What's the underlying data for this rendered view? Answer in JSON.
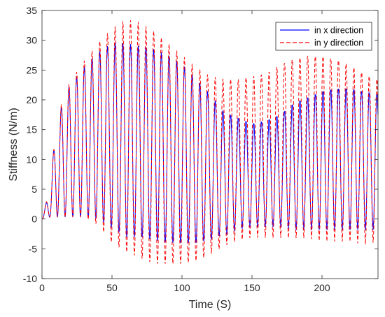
{
  "chart_data": {
    "type": "line",
    "title": "",
    "xlabel": "Time (S)",
    "ylabel": "Stiffness (N/m)",
    "xlim": [
      0,
      240
    ],
    "ylim": [
      -10,
      35
    ],
    "xticks": [
      0,
      50,
      100,
      150,
      200
    ],
    "yticks": [
      -10,
      -5,
      0,
      5,
      10,
      15,
      20,
      25,
      30,
      35
    ],
    "xtick_labels": [
      "0",
      "50",
      "100",
      "150",
      "200"
    ],
    "ytick_labels": [
      "-10",
      "-5",
      "0",
      "5",
      "10",
      "15",
      "20",
      "25",
      "30",
      "35"
    ],
    "grid": false,
    "legend_position": "top-right",
    "oscillation_period_s": 5.5,
    "series": [
      {
        "name": "in x direction",
        "color": "#0000ff",
        "style": "solid",
        "envelope": {
          "t": [
            0,
            5,
            10,
            15,
            20,
            30,
            40,
            50,
            60,
            70,
            80,
            90,
            100,
            110,
            120,
            130,
            140,
            150,
            160,
            170,
            180,
            190,
            200,
            210,
            220,
            230,
            240
          ],
          "upper": [
            0,
            4.5,
            15,
            20,
            22.5,
            25.5,
            28,
            29.5,
            29.5,
            29,
            28.5,
            27.5,
            26,
            23.5,
            21,
            18,
            17,
            16,
            16.5,
            17.5,
            19.5,
            20.5,
            21.5,
            22,
            22,
            21.5,
            21
          ],
          "lower": [
            0,
            0.3,
            0.3,
            0.3,
            0.3,
            0.3,
            0,
            -1.5,
            -3,
            -3,
            -3.5,
            -4,
            -4,
            -4,
            -3.5,
            -2.5,
            -1.5,
            -1,
            -1,
            -1,
            -1.5,
            -1.5,
            -1.5,
            -1.5,
            -1.5,
            -1.5,
            -1.5
          ]
        }
      },
      {
        "name": "in y direction",
        "color": "#ff0000",
        "style": "dashed",
        "envelope": {
          "t": [
            0,
            5,
            10,
            15,
            20,
            30,
            40,
            50,
            60,
            70,
            80,
            90,
            100,
            110,
            120,
            130,
            140,
            150,
            160,
            170,
            180,
            190,
            200,
            210,
            220,
            230,
            240
          ],
          "upper": [
            0,
            4.8,
            15,
            20.5,
            23,
            26.5,
            29.5,
            32,
            33.5,
            33,
            31.5,
            29.5,
            27.5,
            25.5,
            24,
            23.5,
            23.5,
            24,
            24.5,
            26,
            27,
            27.5,
            27.5,
            27,
            26,
            24.5,
            23.5
          ],
          "lower": [
            0,
            0.3,
            0.3,
            0.3,
            0.3,
            0.3,
            -1,
            -4,
            -5.5,
            -6.5,
            -7.5,
            -7.5,
            -7.5,
            -7,
            -6,
            -4.5,
            -3.5,
            -3,
            -3,
            -3,
            -3,
            -3,
            -3.5,
            -3.5,
            -3.5,
            -4,
            -3.5
          ]
        }
      }
    ]
  }
}
